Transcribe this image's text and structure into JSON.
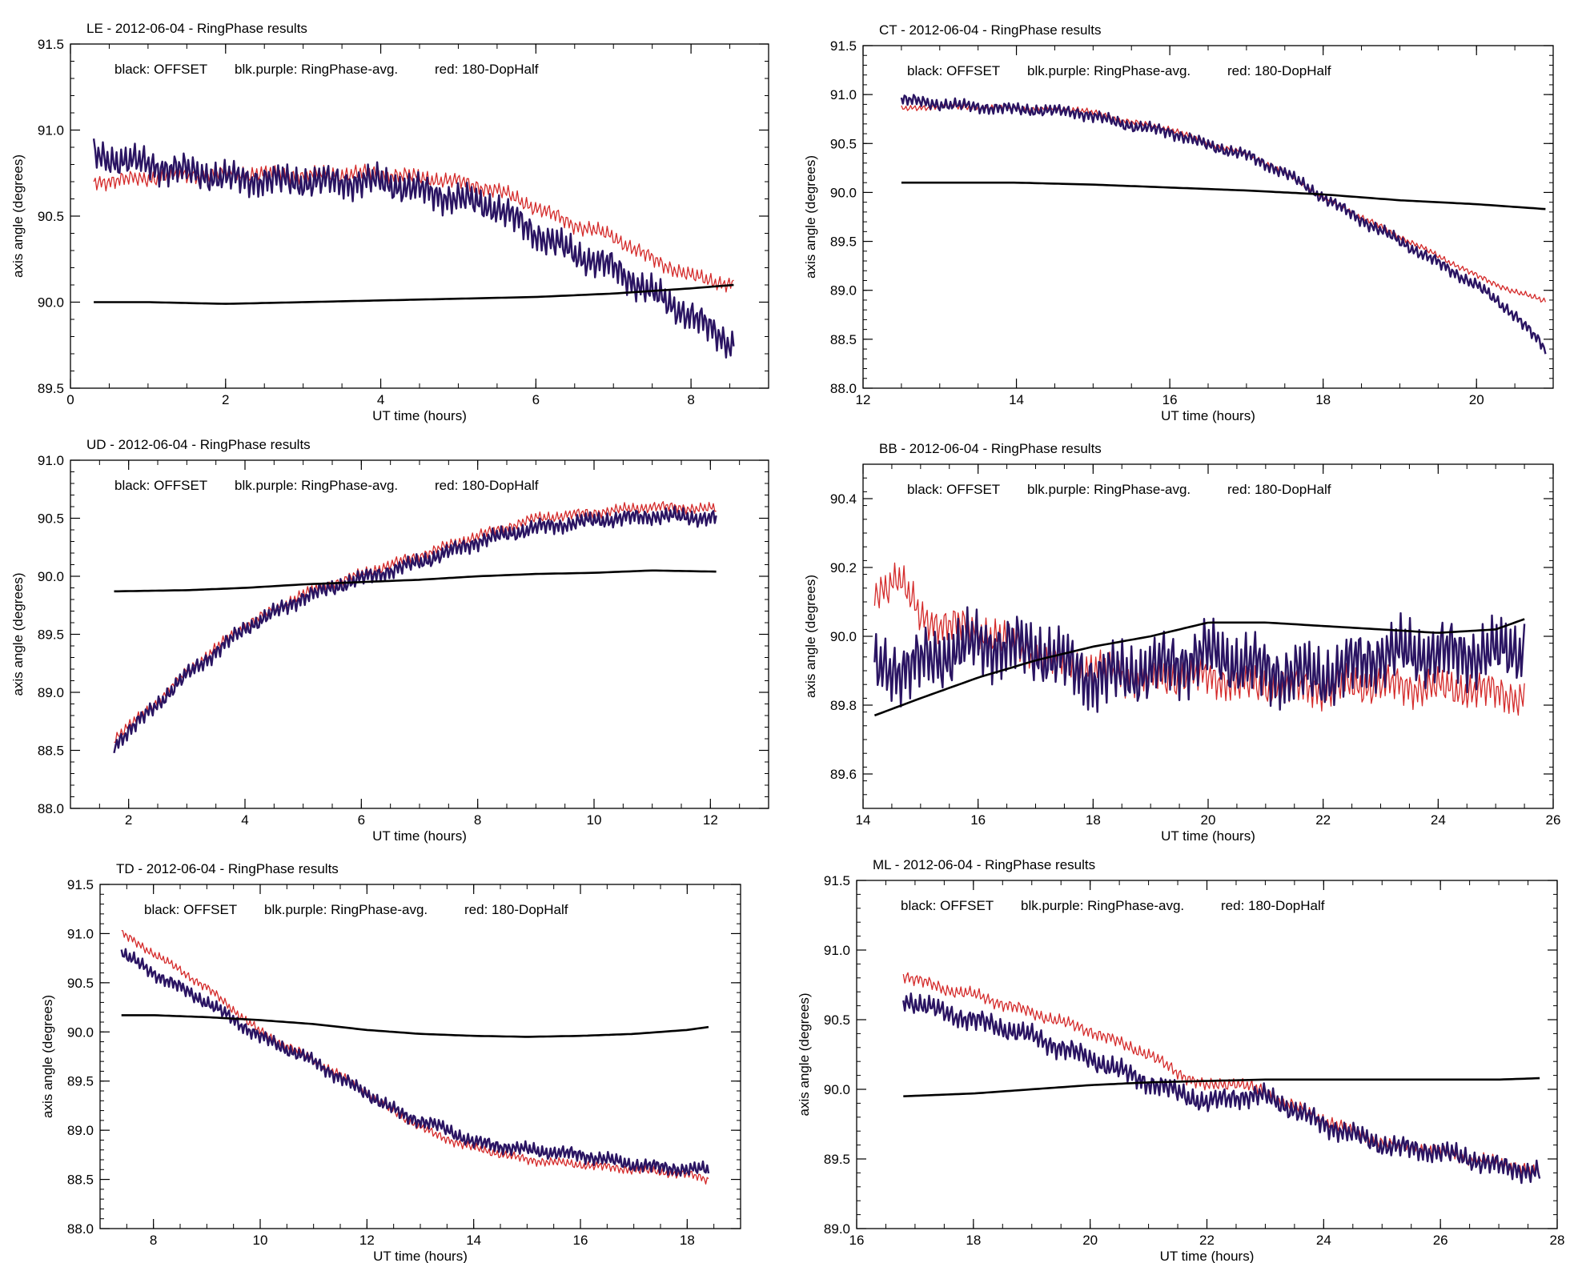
{
  "figure": {
    "series_colors": {
      "offset": "#000000",
      "ringphase": "#2a1462",
      "dophalf": "#d42a2a"
    }
  },
  "chart_data": [
    {
      "type": "line",
      "id": "LE",
      "title": "LE  -  2012-06-04  -  RingPhase results",
      "legend": [
        "black: OFFSET",
        "blk.purple: RingPhase-avg.",
        "red: 180-DopHalf"
      ],
      "xlabel": "UT time (hours)",
      "ylabel": "axis angle (degrees)",
      "xlim": [
        0,
        9
      ],
      "ylim": [
        89.5,
        91.5
      ],
      "xticks": [
        0,
        2,
        4,
        6,
        8
      ],
      "xtick_labels": [
        "0",
        "2",
        "4",
        "6",
        "8"
      ],
      "yticks": [
        89.5,
        90.0,
        90.5,
        91.0,
        91.5
      ],
      "ytick_labels": [
        "89.5",
        "90.0",
        "90.5",
        "91.0",
        "91.5"
      ],
      "series": [
        {
          "name": "OFFSET",
          "style": "offset",
          "x": [
            0.3,
            1,
            2,
            3,
            4,
            5,
            6,
            7,
            8,
            8.55
          ],
          "y": [
            90.0,
            90.0,
            89.99,
            90.0,
            90.01,
            90.02,
            90.03,
            90.05,
            90.08,
            90.1
          ]
        },
        {
          "name": "RingPhase-avg.",
          "style": "ringphase",
          "x": [
            0.3,
            1,
            2,
            3,
            4,
            5,
            5.5,
            6,
            6.5,
            7,
            7.5,
            8,
            8.55
          ],
          "y": [
            90.85,
            90.8,
            90.72,
            90.7,
            90.7,
            90.6,
            90.55,
            90.4,
            90.28,
            90.2,
            90.05,
            89.92,
            89.75
          ],
          "amp": 0.12
        },
        {
          "name": "180-DopHalf",
          "style": "dophalf",
          "x": [
            0.3,
            1,
            2,
            3,
            4,
            5,
            5.5,
            6,
            6.5,
            7,
            7.5,
            8,
            8.55
          ],
          "y": [
            90.7,
            90.72,
            90.75,
            90.74,
            90.75,
            90.7,
            90.65,
            90.55,
            90.45,
            90.38,
            90.25,
            90.15,
            90.1
          ],
          "amp": 0.06
        }
      ]
    },
    {
      "type": "line",
      "id": "CT",
      "title": "CT  -  2012-06-04  -  RingPhase results",
      "legend": [
        "black: OFFSET",
        "blk.purple: RingPhase-avg.",
        "red: 180-DopHalf"
      ],
      "xlabel": "UT time (hours)",
      "ylabel": "axis angle (degrees)",
      "xlim": [
        12,
        21
      ],
      "ylim": [
        88.0,
        91.5
      ],
      "xticks": [
        12,
        14,
        16,
        18,
        20
      ],
      "xtick_labels": [
        "12",
        "14",
        "16",
        "18",
        "20"
      ],
      "yticks": [
        88.0,
        88.5,
        89.0,
        89.5,
        90.0,
        90.5,
        91.0,
        91.5
      ],
      "ytick_labels": [
        "88.0",
        "88.5",
        "89.0",
        "89.5",
        "90.0",
        "90.5",
        "91.0",
        "91.5"
      ],
      "series": [
        {
          "name": "OFFSET",
          "style": "offset",
          "x": [
            12.5,
            14,
            15,
            16,
            17,
            18,
            19,
            20,
            20.9
          ],
          "y": [
            90.1,
            90.1,
            90.08,
            90.05,
            90.02,
            89.98,
            89.92,
            89.88,
            89.83
          ]
        },
        {
          "name": "RingPhase-avg.",
          "style": "ringphase",
          "x": [
            12.5,
            13,
            14,
            14.8,
            15.5,
            16,
            16.5,
            17,
            17.5,
            18,
            18.5,
            19,
            19.5,
            20,
            20.5,
            20.9
          ],
          "y": [
            90.95,
            90.9,
            90.85,
            90.82,
            90.68,
            90.62,
            90.48,
            90.38,
            90.2,
            89.95,
            89.72,
            89.5,
            89.28,
            89.05,
            88.75,
            88.4
          ],
          "amp": 0.08
        },
        {
          "name": "180-DopHalf",
          "style": "dophalf",
          "x": [
            12.5,
            13,
            14,
            14.8,
            15.5,
            16,
            16.5,
            17,
            17.5,
            18,
            18.5,
            19,
            19.5,
            20,
            20.5,
            20.9
          ],
          "y": [
            90.85,
            90.88,
            90.86,
            90.85,
            90.72,
            90.65,
            90.5,
            90.4,
            90.2,
            89.95,
            89.75,
            89.55,
            89.35,
            89.15,
            88.98,
            88.9
          ],
          "amp": 0.04
        }
      ]
    },
    {
      "type": "line",
      "id": "UD",
      "title": "UD  -  2012-06-04  -  RingPhase results",
      "legend": [
        "black: OFFSET",
        "blk.purple: RingPhase-avg.",
        "red: 180-DopHalf"
      ],
      "xlabel": "UT time (hours)",
      "ylabel": "axis angle (degrees)",
      "xlim": [
        1,
        13
      ],
      "ylim": [
        88.0,
        91.0
      ],
      "xticks": [
        2,
        4,
        6,
        8,
        10,
        12
      ],
      "xtick_labels": [
        "2",
        "4",
        "6",
        "8",
        "10",
        "12"
      ],
      "yticks": [
        88.0,
        88.5,
        89.0,
        89.5,
        90.0,
        90.5,
        91.0
      ],
      "ytick_labels": [
        "88.0",
        "88.5",
        "89.0",
        "89.5",
        "90.0",
        "90.5",
        "91.0"
      ],
      "series": [
        {
          "name": "OFFSET",
          "style": "offset",
          "x": [
            1.75,
            3,
            4,
            5,
            6,
            7,
            8,
            9,
            10,
            11,
            12.1
          ],
          "y": [
            89.87,
            89.88,
            89.9,
            89.93,
            89.95,
            89.97,
            90.0,
            90.02,
            90.03,
            90.05,
            90.04
          ]
        },
        {
          "name": "RingPhase-avg.",
          "style": "ringphase",
          "x": [
            1.75,
            2.5,
            3,
            4,
            5,
            6,
            7,
            8,
            9,
            10,
            11,
            12.1
          ],
          "y": [
            88.55,
            88.9,
            89.15,
            89.55,
            89.82,
            89.98,
            90.12,
            90.3,
            90.42,
            90.48,
            90.52,
            90.5
          ],
          "amp": 0.09
        },
        {
          "name": "180-DopHalf",
          "style": "dophalf",
          "x": [
            1.75,
            2.5,
            3,
            4,
            5,
            6,
            7,
            8,
            9,
            10,
            11,
            12.1
          ],
          "y": [
            88.6,
            88.92,
            89.18,
            89.58,
            89.85,
            90.02,
            90.18,
            90.35,
            90.5,
            90.55,
            90.6,
            90.58
          ],
          "amp": 0.06
        }
      ]
    },
    {
      "type": "line",
      "id": "BB",
      "title": "BB  -  2012-06-04  -  RingPhase results",
      "legend": [
        "black: OFFSET",
        "blk.purple: RingPhase-avg.",
        "red: 180-DopHalf"
      ],
      "xlabel": "UT time (hours)",
      "ylabel": "axis angle (degrees)",
      "xlim": [
        14,
        26
      ],
      "ylim": [
        89.5,
        90.5
      ],
      "xticks": [
        14,
        16,
        18,
        20,
        22,
        24,
        26
      ],
      "xtick_labels": [
        "14",
        "16",
        "18",
        "20",
        "22",
        "24",
        "26"
      ],
      "yticks": [
        89.6,
        89.8,
        90.0,
        90.2,
        90.4
      ],
      "ytick_labels": [
        "89.6",
        "89.8",
        "90.0",
        "90.2",
        "90.4"
      ],
      "series": [
        {
          "name": "OFFSET",
          "style": "offset",
          "x": [
            14.2,
            15,
            16,
            17,
            18,
            19,
            20,
            21,
            22,
            23,
            24,
            25,
            25.5
          ],
          "y": [
            89.77,
            89.82,
            89.88,
            89.93,
            89.97,
            90.0,
            90.04,
            90.04,
            90.03,
            90.02,
            90.01,
            90.02,
            90.05
          ]
        },
        {
          "name": "RingPhase-avg.",
          "style": "ringphase",
          "x": [
            14.2,
            15,
            16,
            17,
            18,
            19,
            20,
            21,
            22,
            23,
            24,
            25,
            25.5
          ],
          "y": [
            89.9,
            89.92,
            89.98,
            89.96,
            89.88,
            89.9,
            89.95,
            89.9,
            89.88,
            89.95,
            89.95,
            89.95,
            89.97
          ],
          "amp": 0.12
        },
        {
          "name": "180-DopHalf",
          "style": "dophalf",
          "x": [
            14.2,
            14.6,
            15,
            16,
            17,
            18,
            19,
            20,
            21,
            22,
            23,
            24,
            25,
            25.5
          ],
          "y": [
            90.12,
            90.18,
            90.05,
            90.02,
            89.95,
            89.9,
            89.88,
            89.88,
            89.85,
            89.85,
            89.86,
            89.85,
            89.84,
            89.82
          ],
          "amp": 0.07
        }
      ]
    },
    {
      "type": "line",
      "id": "TD",
      "title": "TD  -  2012-06-04  -  RingPhase results",
      "legend": [
        "black: OFFSET",
        "blk.purple: RingPhase-avg.",
        "red: 180-DopHalf"
      ],
      "xlabel": "UT time (hours)",
      "ylabel": "axis angle (degrees)",
      "xlim": [
        7,
        19
      ],
      "ylim": [
        88.0,
        91.5
      ],
      "xticks": [
        8,
        10,
        12,
        14,
        16,
        18
      ],
      "xtick_labels": [
        "8",
        "10",
        "12",
        "14",
        "16",
        "18"
      ],
      "yticks": [
        88.0,
        88.5,
        89.0,
        89.5,
        90.0,
        90.5,
        91.0,
        91.5
      ],
      "ytick_labels": [
        "88.0",
        "88.5",
        "89.0",
        "89.5",
        "90.0",
        "90.5",
        "91.0",
        "91.5"
      ],
      "series": [
        {
          "name": "OFFSET",
          "style": "offset",
          "x": [
            7.4,
            8,
            9,
            10,
            11,
            12,
            13,
            14,
            15,
            16,
            17,
            18,
            18.4
          ],
          "y": [
            90.17,
            90.17,
            90.15,
            90.12,
            90.08,
            90.02,
            89.98,
            89.96,
            89.95,
            89.96,
            89.98,
            90.02,
            90.05
          ]
        },
        {
          "name": "RingPhase-avg.",
          "style": "ringphase",
          "x": [
            7.4,
            8,
            9,
            10,
            11,
            11.9,
            12.7,
            13.3,
            14,
            15,
            16,
            17,
            18,
            18.4
          ],
          "y": [
            90.8,
            90.6,
            90.3,
            89.95,
            89.7,
            89.4,
            89.15,
            89.05,
            88.88,
            88.8,
            88.75,
            88.65,
            88.6,
            88.6
          ],
          "amp": 0.09
        },
        {
          "name": "180-DopHalf",
          "style": "dophalf",
          "x": [
            7.4,
            8,
            9,
            10,
            11,
            11.9,
            12.7,
            13.3,
            14,
            15,
            16,
            17,
            18,
            18.4
          ],
          "y": [
            91.0,
            90.8,
            90.45,
            90.0,
            89.72,
            89.42,
            89.12,
            88.95,
            88.82,
            88.7,
            88.65,
            88.6,
            88.55,
            88.5
          ],
          "amp": 0.06
        }
      ]
    },
    {
      "type": "line",
      "id": "ML",
      "title": "ML  -  2012-06-04  -  RingPhase results",
      "legend": [
        "black: OFFSET",
        "blk.purple: RingPhase-avg.",
        "red: 180-DopHalf"
      ],
      "xlabel": "UT time (hours)",
      "ylabel": "axis angle (degrees)",
      "xlim": [
        16,
        28
      ],
      "ylim": [
        89.0,
        91.5
      ],
      "xticks": [
        16,
        18,
        20,
        22,
        24,
        26,
        28
      ],
      "xtick_labels": [
        "16",
        "18",
        "20",
        "22",
        "24",
        "26",
        "28"
      ],
      "yticks": [
        89.0,
        89.5,
        90.0,
        90.5,
        91.0,
        91.5
      ],
      "ytick_labels": [
        "89.0",
        "89.5",
        "90.0",
        "90.5",
        "91.0",
        "91.5"
      ],
      "series": [
        {
          "name": "OFFSET",
          "style": "offset",
          "x": [
            16.8,
            18,
            19,
            20,
            21,
            22,
            23,
            24,
            25,
            26,
            27,
            27.7
          ],
          "y": [
            89.95,
            89.97,
            90.0,
            90.03,
            90.05,
            90.06,
            90.07,
            90.07,
            90.07,
            90.07,
            90.07,
            90.08
          ]
        },
        {
          "name": "RingPhase-avg.",
          "style": "ringphase",
          "x": [
            16.8,
            17.5,
            18,
            19,
            20,
            21,
            21.5,
            22,
            22.5,
            23,
            24,
            25,
            26,
            27,
            27.7
          ],
          "y": [
            90.65,
            90.55,
            90.5,
            90.38,
            90.22,
            90.05,
            89.98,
            89.9,
            89.95,
            89.95,
            89.75,
            89.6,
            89.55,
            89.45,
            89.4
          ],
          "amp": 0.1
        },
        {
          "name": "180-DopHalf",
          "style": "dophalf",
          "x": [
            16.8,
            17.5,
            18,
            19,
            20,
            21,
            21.5,
            22,
            22.5,
            23,
            24,
            25,
            26,
            27,
            27.7
          ],
          "y": [
            90.82,
            90.72,
            90.68,
            90.55,
            90.42,
            90.25,
            90.12,
            90.02,
            90.05,
            89.98,
            89.78,
            89.62,
            89.55,
            89.47,
            89.4
          ],
          "amp": 0.06
        }
      ]
    }
  ]
}
